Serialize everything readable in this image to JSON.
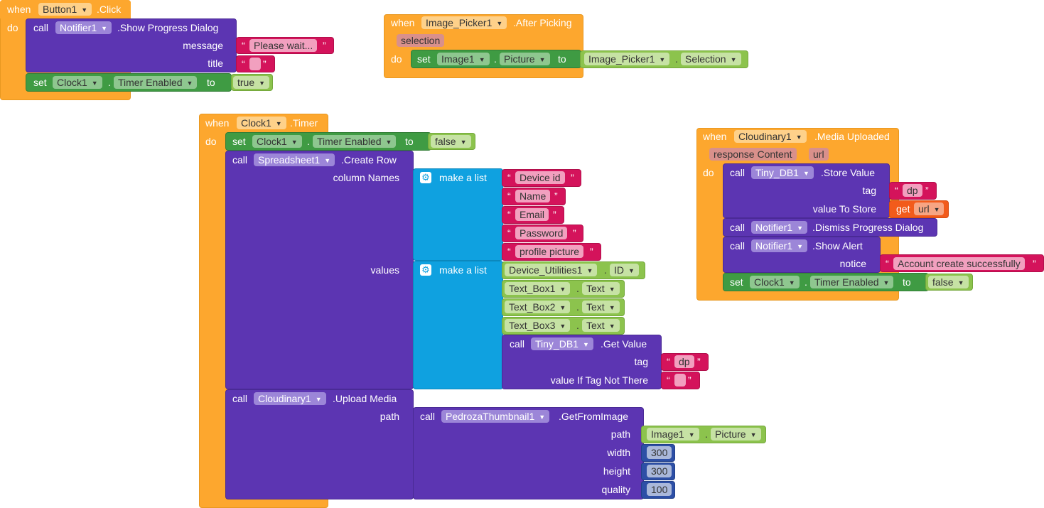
{
  "blocks": {
    "button_click": {
      "when": "when",
      "component": "Button1",
      "event": ".Click",
      "do": "do",
      "call": "call",
      "notifier": "Notifier1",
      "method": ".Show Progress Dialog",
      "message_label": "message",
      "message_value": "Please wait...",
      "title_label": "title",
      "set": "set",
      "clock": "Clock1",
      "dot": ".",
      "property": "Timer Enabled",
      "to": "to",
      "value": "true"
    },
    "image_picker": {
      "when": "when",
      "component": "Image_Picker1",
      "event": ".After Picking",
      "param": "selection",
      "do": "do",
      "set": "set",
      "image": "Image1",
      "dot": ".",
      "property": "Picture",
      "to": "to",
      "source": "Image_Picker1",
      "source_property": "Selection"
    },
    "clock_timer": {
      "when": "when",
      "component": "Clock1",
      "event": ".Timer",
      "do": "do",
      "set": "set",
      "clock": "Clock1",
      "dot": ".",
      "property": "Timer Enabled",
      "to": "to",
      "value": "false",
      "call": "call",
      "spreadsheet": "Spreadsheet1",
      "create_row": ".Create Row",
      "column_names_label": "column Names",
      "values_label": "values",
      "make_a_list": "make a list",
      "column_names": [
        "Device id",
        "Name",
        "Email",
        "Password",
        "profile picture"
      ],
      "values": [
        {
          "component": "Device_Utilities1",
          "property": "ID"
        },
        {
          "component": "Text_Box1",
          "property": "Text"
        },
        {
          "component": "Text_Box2",
          "property": "Text"
        },
        {
          "component": "Text_Box3",
          "property": "Text"
        }
      ],
      "tinydb": "Tiny_DB1",
      "get_value": ".Get Value",
      "tag_label": "tag",
      "tag_value": "dp",
      "value_if_label": "value If Tag Not There",
      "cloudinary": "Cloudinary1",
      "upload_media": ".Upload Media",
      "path_label": "path",
      "thumbnail": "PedrozaThumbnail1",
      "get_from_image": ".GetFromImage",
      "path_inner_label": "path",
      "image": "Image1",
      "image_property": "Picture",
      "width_label": "width",
      "width_value": "300",
      "height_label": "height",
      "height_value": "300",
      "quality_label": "quality",
      "quality_value": "100"
    },
    "cloudinary_uploaded": {
      "when": "when",
      "component": "Cloudinary1",
      "event": ".Media Uploaded",
      "param1": "response Content",
      "param2": "url",
      "do": "do",
      "call": "call",
      "tinydb": "Tiny_DB1",
      "store_value": ".Store Value",
      "tag_label": "tag",
      "tag_value": "dp",
      "value_to_store_label": "value To Store",
      "get": "get",
      "get_var": "url",
      "notifier": "Notifier1",
      "dismiss": ".Dismiss Progress Dialog",
      "show_alert": ".Show Alert",
      "notice_label": "notice",
      "notice_value": "Account create successfully",
      "set": "set",
      "clock": "Clock1",
      "dot": ".",
      "property": "Timer Enabled",
      "to": "to",
      "value": "false"
    }
  },
  "icons": {
    "dropdown": "chevron-down-icon",
    "mutator": "gear-icon"
  },
  "colors": {
    "event": "#fda72e",
    "procedure": "#5c35b2",
    "setter": "#3f9b43",
    "getter": "#8cc34d",
    "text": "#d4135b",
    "list": "#0fa1e0",
    "math": "#2d4fa6",
    "variable": "#f25b1b"
  }
}
